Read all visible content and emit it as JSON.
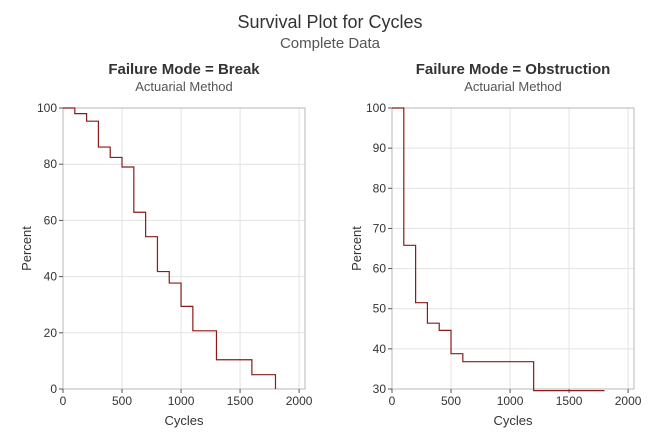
{
  "figure": {
    "title": "Survival Plot for Cycles",
    "subtitle": "Complete Data"
  },
  "chart_data": [
    {
      "type": "line",
      "title": "Failure Mode = Break",
      "subtitle": "Actuarial Method",
      "xlabel": "Cycles",
      "ylabel": "Percent",
      "xlim": [
        0,
        2050
      ],
      "ylim": [
        0,
        100
      ],
      "xticks": [
        0,
        500,
        1000,
        1500,
        2000
      ],
      "yticks": [
        0,
        20,
        40,
        60,
        80,
        100
      ],
      "grid": true,
      "step": "post",
      "color": "#8b1a1a",
      "x": [
        0,
        100,
        200,
        300,
        400,
        500,
        600,
        700,
        800,
        900,
        1000,
        1100,
        1300,
        1600,
        1800
      ],
      "y": [
        100,
        98,
        95.3,
        86.1,
        82.4,
        79,
        62.9,
        54.2,
        41.8,
        37.7,
        29.4,
        20.7,
        10.4,
        5.1,
        0
      ]
    },
    {
      "type": "line",
      "title": "Failure Mode = Obstruction",
      "subtitle": "Actuarial Method",
      "xlabel": "Cycles",
      "ylabel": "Percent",
      "xlim": [
        0,
        2050
      ],
      "ylim": [
        30,
        100
      ],
      "xticks": [
        0,
        500,
        1000,
        1500,
        2000
      ],
      "yticks": [
        30,
        40,
        50,
        60,
        70,
        80,
        90,
        100
      ],
      "grid": true,
      "step": "post",
      "color": "#8b1a1a",
      "x": [
        0,
        100,
        200,
        300,
        400,
        500,
        600,
        1200,
        1800
      ],
      "y": [
        100,
        65.8,
        51.5,
        46.4,
        44.6,
        38.8,
        36.8,
        29.6,
        29.6
      ]
    }
  ]
}
